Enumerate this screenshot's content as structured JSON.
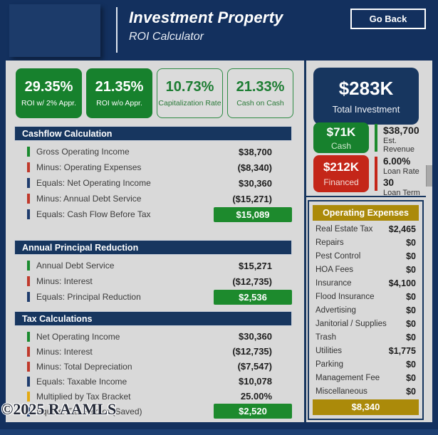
{
  "app": {
    "title": "Investment Property",
    "subtitle": "ROI Calculator",
    "go_back_label": "Go Back",
    "watermark": "©2025 RAAMLS"
  },
  "kpis": [
    {
      "value": "29.35%",
      "label": "ROI w/ 2% Appr.",
      "style": "filled"
    },
    {
      "value": "21.35%",
      "label": "ROI w/o Appr.",
      "style": "filled"
    },
    {
      "value": "10.73%",
      "label": "Capitalization Rate",
      "style": "outline"
    },
    {
      "value": "21.33%",
      "label": "Cash on Cash",
      "style": "outline"
    }
  ],
  "sections": [
    {
      "title": "Cashflow Calculation",
      "rows": [
        {
          "tick": "green",
          "label": "Gross Operating Income",
          "value": "$38,700",
          "style": "plain"
        },
        {
          "tick": "red",
          "label": "Minus: Operating Expenses",
          "value": "($8,340)",
          "style": "plain"
        },
        {
          "tick": "navy",
          "label": "Equals: Net Operating Income",
          "value": "$30,360",
          "style": "plain"
        },
        {
          "tick": "red",
          "label": "Minus: Annual Debt Service",
          "value": "($15,271)",
          "style": "plain"
        },
        {
          "tick": "navy",
          "label": "Equals: Cash Flow Before Tax",
          "value": "$15,089",
          "style": "chip"
        }
      ]
    },
    {
      "title": "Annual Principal Reduction",
      "rows": [
        {
          "tick": "green",
          "label": "Annual Debt Service",
          "value": "$15,271",
          "style": "plain"
        },
        {
          "tick": "red",
          "label": "Minus: Interest",
          "value": "($12,735)",
          "style": "plain"
        },
        {
          "tick": "navy",
          "label": "Equals: Principal Reduction",
          "value": "$2,536",
          "style": "chip"
        }
      ]
    },
    {
      "title": "Tax Calculations",
      "rows": [
        {
          "tick": "green",
          "label": "Net Operating Income",
          "value": "$30,360",
          "style": "plain"
        },
        {
          "tick": "red",
          "label": "Minus: Interest",
          "value": "($12,735)",
          "style": "plain"
        },
        {
          "tick": "red",
          "label": "Minus: Total Depreciation",
          "value": "($7,547)",
          "style": "plain"
        },
        {
          "tick": "navy",
          "label": "Equals: Taxable Income",
          "value": "$10,078",
          "style": "plain"
        },
        {
          "tick": "gold",
          "label": "Multiplied by Tax Bracket",
          "value": "25.00%",
          "style": "plain"
        },
        {
          "tick": "navy",
          "label": "Equals: Tax Paid or (Saved)",
          "value": "$2,520",
          "style": "chip"
        }
      ]
    }
  ],
  "investment": {
    "total": {
      "value": "$283K",
      "label": "Total Investment"
    },
    "cash": {
      "value": "$71K",
      "label": "Cash"
    },
    "financed": {
      "value": "$212K",
      "label": "Financed"
    },
    "est_revenue": {
      "value": "$38,700",
      "label": "Est. Revenue"
    },
    "loan_rate": {
      "value": "6.00%",
      "label": "Loan Rate"
    },
    "loan_term": {
      "value": "30",
      "label": "Loan Term"
    }
  },
  "operating_expenses": {
    "title": "Operating Expenses",
    "rows": [
      {
        "label": "Real Estate Tax",
        "value": "$2,465"
      },
      {
        "label": "Repairs",
        "value": "$0"
      },
      {
        "label": "Pest Control",
        "value": "$0"
      },
      {
        "label": "HOA Fees",
        "value": "$0"
      },
      {
        "label": "Insurance",
        "value": "$4,100"
      },
      {
        "label": "Flood Insurance",
        "value": "$0"
      },
      {
        "label": "Advertising",
        "value": "$0"
      },
      {
        "label": "Janitorial / Supplies",
        "value": "$0"
      },
      {
        "label": "Trash",
        "value": "$0"
      },
      {
        "label": "Utilities",
        "value": "$1,775"
      },
      {
        "label": "Parking",
        "value": "$0"
      },
      {
        "label": "Management Fee",
        "value": "$0"
      },
      {
        "label": "Miscellaneous",
        "value": "$0"
      }
    ],
    "total": "$8,340"
  },
  "colors": {
    "navy": "#13305e",
    "panel_header_navy": "#17365f",
    "green": "#17812d",
    "red": "#c42619",
    "gold": "#ab8a0a",
    "background_gray": "#d9d9d9"
  }
}
